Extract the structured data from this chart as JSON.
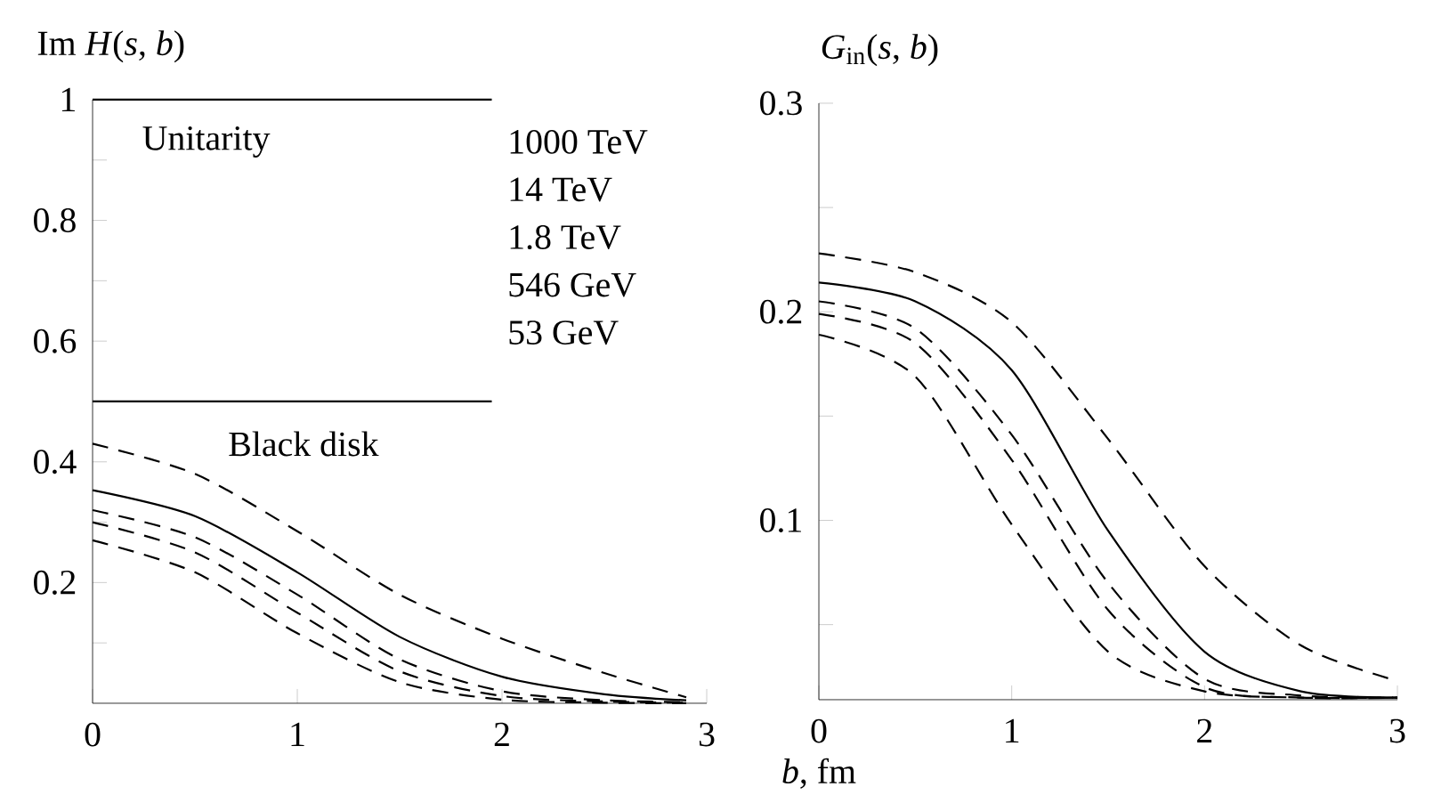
{
  "chart_data": [
    {
      "type": "line",
      "ylabel": "Im *H*(*s*, *b*)",
      "xlim": [
        0,
        3
      ],
      "ylim": [
        0,
        1
      ],
      "xticks": [
        0,
        1,
        2,
        3
      ],
      "yticks": [
        {
          "value": 0.1,
          "label": null
        },
        0.2,
        {
          "value": 0.3,
          "label": null
        },
        0.4,
        {
          "value": 0.5,
          "label": null
        },
        0.6,
        {
          "value": 0.7,
          "label": null
        },
        0.8,
        {
          "value": 0.9,
          "label": null
        },
        1
      ],
      "annotations": [
        "Unitarity",
        "Black disk",
        "1000 TeV",
        "14 TeV",
        "1.8 TeV",
        "546 GeV",
        "53 GeV"
      ],
      "series": [
        {
          "color": "#000000",
          "line_style": "solid",
          "x": [
            0,
            1.95
          ],
          "values": [
            1,
            1
          ]
        },
        {
          "color": "#000000",
          "line_style": "solid",
          "x": [
            0,
            1.95
          ],
          "values": [
            0.5,
            0.5
          ]
        },
        {
          "color": "#000000",
          "line_style": "dashed",
          "x": [
            0,
            0.5,
            1,
            1.5,
            2,
            2.5,
            2.9
          ],
          "values": [
            0.43,
            0.38,
            0.285,
            0.18,
            0.107,
            0.05,
            0.01
          ]
        },
        {
          "color": "#000000",
          "line_style": "solid",
          "x": [
            0,
            0.5,
            1,
            1.5,
            2,
            2.5,
            2.9
          ],
          "values": [
            0.353,
            0.31,
            0.217,
            0.11,
            0.044,
            0.015,
            0.005
          ]
        },
        {
          "color": "#000000",
          "line_style": "dashed",
          "x": [
            0,
            0.5,
            1,
            1.5,
            2,
            2.5,
            2.9
          ],
          "values": [
            0.32,
            0.275,
            0.18,
            0.073,
            0.02,
            0.005,
            0.002
          ]
        },
        {
          "color": "#000000",
          "line_style": "dashed",
          "x": [
            0,
            0.5,
            1,
            1.5,
            2,
            2.5,
            2.9
          ],
          "values": [
            0.3,
            0.25,
            0.15,
            0.053,
            0.012,
            0.003,
            0.001
          ]
        },
        {
          "color": "#000000",
          "line_style": "dashed",
          "x": [
            0,
            0.5,
            1,
            1.5,
            2,
            2.5,
            2.9
          ],
          "values": [
            0.27,
            0.217,
            0.116,
            0.035,
            0.006,
            0.001,
            0
          ]
        }
      ]
    },
    {
      "type": "line",
      "ylabel": "*G*$_{in}$(*s*, *b*)",
      "xlabel": "*b*, fm",
      "xlim": [
        0,
        3
      ],
      "ylim": [
        0.014,
        0.3
      ],
      "xticks": [
        0,
        1,
        2,
        3
      ],
      "yticks": [
        {
          "value": 0.05,
          "label": null
        },
        0.1,
        {
          "value": 0.15,
          "label": null
        },
        0.2,
        {
          "value": 0.25,
          "label": null
        },
        0.3
      ],
      "series": [
        {
          "color": "#000000",
          "line_style": "dashed",
          "x": [
            0,
            0.5,
            1,
            1.5,
            2,
            2.5,
            3
          ],
          "values": [
            0.228,
            0.219,
            0.195,
            0.139,
            0.078,
            0.04,
            0.023
          ]
        },
        {
          "color": "#000000",
          "line_style": "solid",
          "x": [
            0,
            0.5,
            1,
            1.5,
            2,
            2.5,
            3
          ],
          "values": [
            0.214,
            0.205,
            0.172,
            0.095,
            0.037,
            0.018,
            0.015
          ]
        },
        {
          "color": "#000000",
          "line_style": "dashed",
          "x": [
            0,
            0.5,
            1,
            1.5,
            2,
            2.5,
            3
          ],
          "values": [
            0.205,
            0.192,
            0.141,
            0.07,
            0.024,
            0.016,
            0.015
          ]
        },
        {
          "color": "#000000",
          "line_style": "dashed",
          "x": [
            0,
            0.5,
            1,
            1.5,
            2,
            2.5,
            3
          ],
          "values": [
            0.199,
            0.185,
            0.129,
            0.057,
            0.02,
            0.015,
            0.015
          ]
        },
        {
          "color": "#000000",
          "line_style": "dashed",
          "x": [
            0,
            0.5,
            1,
            1.5,
            2,
            2.5,
            3
          ],
          "values": [
            0.189,
            0.169,
            0.098,
            0.037,
            0.018,
            0.015,
            0.015
          ]
        }
      ]
    }
  ]
}
